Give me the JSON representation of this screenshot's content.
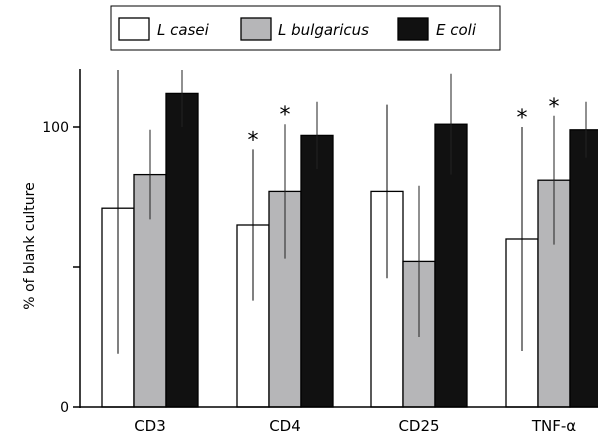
{
  "chart_data": {
    "type": "bar",
    "categories": [
      "CD3",
      "CD4",
      "CD25",
      "TNF-α"
    ],
    "series": [
      {
        "name": "L casei",
        "color": "#ffffff",
        "values": [
          71,
          65,
          77,
          60
        ],
        "error": [
          52,
          27,
          31,
          40
        ]
      },
      {
        "name": "L bulgaricus",
        "color": "#b6b6b8",
        "values": [
          83,
          77,
          52,
          81
        ],
        "error": [
          16,
          24,
          27,
          23
        ]
      },
      {
        "name": "E coli",
        "color": "#111111",
        "values": [
          112,
          97,
          101,
          99
        ],
        "error": [
          12,
          12,
          18,
          10
        ]
      }
    ],
    "significance": [
      {
        "category": "CD4",
        "series": "L casei",
        "label": "*"
      },
      {
        "category": "CD4",
        "series": "L bulgaricus",
        "label": "*"
      },
      {
        "category": "TNF-α",
        "series": "L casei",
        "label": "*"
      },
      {
        "category": "TNF-α",
        "series": "L bulgaricus",
        "label": "*"
      }
    ],
    "yticks": [
      0,
      100
    ],
    "ylim": [
      0,
      121
    ],
    "ylabel": "% of blank culture",
    "xlabel": "",
    "legend_position": "top-center"
  }
}
